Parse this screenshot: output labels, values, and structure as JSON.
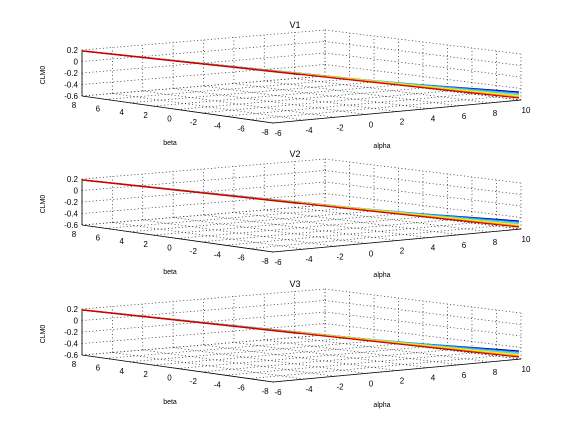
{
  "figure": {
    "background": "#ffffff",
    "grid_color": "#1a1a1a",
    "axis_color": "#000000"
  },
  "chart_data": [
    {
      "type": "surface",
      "title": "V1",
      "xlabel": "alpha",
      "ylabel": "beta",
      "zlabel": "CLM0",
      "xlim": [
        -6,
        10
      ],
      "ylim": [
        -8,
        8
      ],
      "zlim": [
        -0.6,
        0.2
      ],
      "x_ticks": [
        "-6",
        "-4",
        "-2",
        "0",
        "2",
        "4",
        "6",
        "8",
        "10"
      ],
      "y_ticks": [
        "8",
        "6",
        "4",
        "2",
        "0",
        "-2",
        "-4",
        "-6",
        "-8"
      ],
      "z_ticks": [
        "0.2",
        "0",
        "-0.2",
        "-0.4",
        "-0.6"
      ],
      "grid": true,
      "colormap": [
        "#cc0000",
        "#ff8800",
        "#ffee00",
        "#44ddcc",
        "#1e90ff",
        "#0000aa"
      ]
    },
    {
      "type": "surface",
      "title": "V2",
      "xlabel": "alpha",
      "ylabel": "beta",
      "zlabel": "CLM0",
      "xlim": [
        -6,
        10
      ],
      "ylim": [
        -8,
        8
      ],
      "zlim": [
        -0.6,
        0.2
      ],
      "x_ticks": [
        "-6",
        "-4",
        "-2",
        "0",
        "2",
        "4",
        "6",
        "8",
        "10"
      ],
      "y_ticks": [
        "8",
        "6",
        "4",
        "2",
        "0",
        "-2",
        "-4",
        "-6",
        "-8"
      ],
      "z_ticks": [
        "0.2",
        "0",
        "-0.2",
        "-0.4",
        "-0.6"
      ],
      "grid": true,
      "colormap": [
        "#cc0000",
        "#ff8800",
        "#ffee00",
        "#44ddcc",
        "#1e90ff",
        "#0000aa"
      ]
    },
    {
      "type": "surface",
      "title": "V3",
      "xlabel": "alpha",
      "ylabel": "beta",
      "zlabel": "CLM0",
      "xlim": [
        -6,
        10
      ],
      "ylim": [
        -8,
        8
      ],
      "zlim": [
        -0.6,
        0.2
      ],
      "x_ticks": [
        "-6",
        "-4",
        "-2",
        "0",
        "2",
        "4",
        "6",
        "8",
        "10"
      ],
      "y_ticks": [
        "8",
        "6",
        "4",
        "2",
        "0",
        "-2",
        "-4",
        "-6",
        "-8"
      ],
      "z_ticks": [
        "0.2",
        "0",
        "-0.2",
        "-0.4",
        "-0.6"
      ],
      "grid": true,
      "colormap": [
        "#cc0000",
        "#ff8800",
        "#ffee00",
        "#44ddcc",
        "#1e90ff",
        "#0000aa"
      ]
    }
  ]
}
